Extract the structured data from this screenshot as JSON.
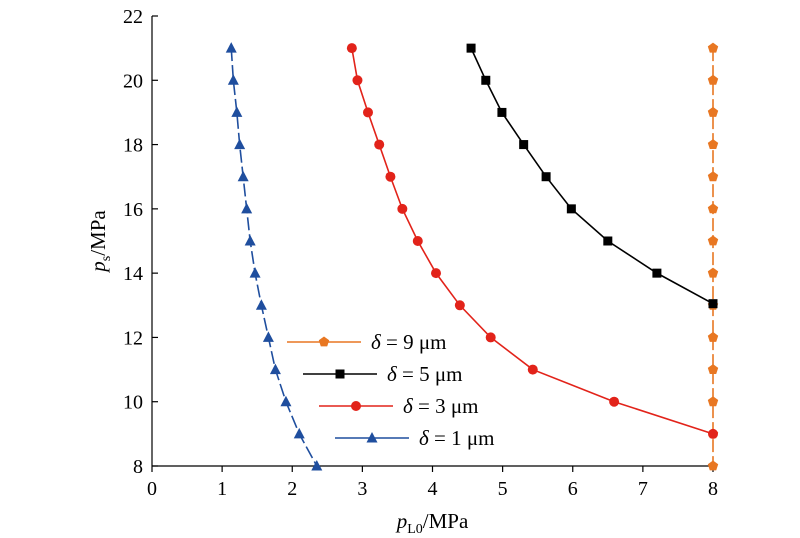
{
  "chart_data": {
    "type": "line",
    "xlabel": {
      "main": "p",
      "sub": "L0",
      "unit": "/MPa"
    },
    "ylabel": {
      "main": "p",
      "sub": "s",
      "unit": "/MPa"
    },
    "xlim": [
      0,
      8
    ],
    "ylim": [
      8,
      22
    ],
    "xticks": [
      "0",
      "1",
      "2",
      "3",
      "4",
      "5",
      "6",
      "7",
      "8"
    ],
    "yticks": [
      "8",
      "10",
      "12",
      "14",
      "16",
      "18",
      "20",
      "22"
    ],
    "grid": false,
    "legend_position": "center-left",
    "series": [
      {
        "name": "δ = 9 μm",
        "legend_prefix": "δ",
        "legend_suffix": " = 9 μm",
        "color": "#E87722",
        "marker": "pentagon",
        "dashed": true,
        "x": [
          8,
          8,
          8,
          8,
          8,
          8,
          8,
          8,
          8,
          8,
          8,
          8,
          8,
          8
        ],
        "y": [
          21,
          20,
          19,
          18,
          17,
          16,
          15,
          14,
          13,
          12,
          11,
          10,
          9,
          8
        ]
      },
      {
        "name": "δ = 5 μm",
        "legend_prefix": "δ",
        "legend_suffix": " = 5 μm",
        "color": "#000000",
        "marker": "square",
        "dashed": false,
        "x": [
          4.55,
          4.76,
          4.99,
          5.3,
          5.62,
          5.98,
          6.5,
          7.2,
          8.0
        ],
        "y": [
          21,
          20,
          19,
          18,
          17,
          16,
          15,
          14,
          13.05
        ]
      },
      {
        "name": "δ = 3 μm",
        "legend_prefix": "δ",
        "legend_suffix": " = 3 μm",
        "color": "#E2231A",
        "marker": "circle",
        "dashed": false,
        "x": [
          2.85,
          2.93,
          3.08,
          3.24,
          3.4,
          3.57,
          3.79,
          4.05,
          4.39,
          4.83,
          5.43,
          6.59,
          8.0
        ],
        "y": [
          21,
          20,
          19,
          18,
          17,
          16,
          15,
          14,
          13,
          12,
          11,
          10,
          9
        ]
      },
      {
        "name": "δ = 1 μm",
        "legend_prefix": "δ",
        "legend_suffix": " = 1 μm",
        "color": "#1F4E9E",
        "marker": "triangle",
        "dashed": true,
        "x": [
          1.13,
          1.16,
          1.21,
          1.25,
          1.3,
          1.35,
          1.4,
          1.47,
          1.56,
          1.66,
          1.76,
          1.91,
          2.1,
          2.35
        ],
        "y": [
          21,
          20,
          19,
          18,
          17,
          16,
          15,
          14,
          13,
          12,
          11,
          10,
          9,
          8
        ]
      }
    ]
  }
}
